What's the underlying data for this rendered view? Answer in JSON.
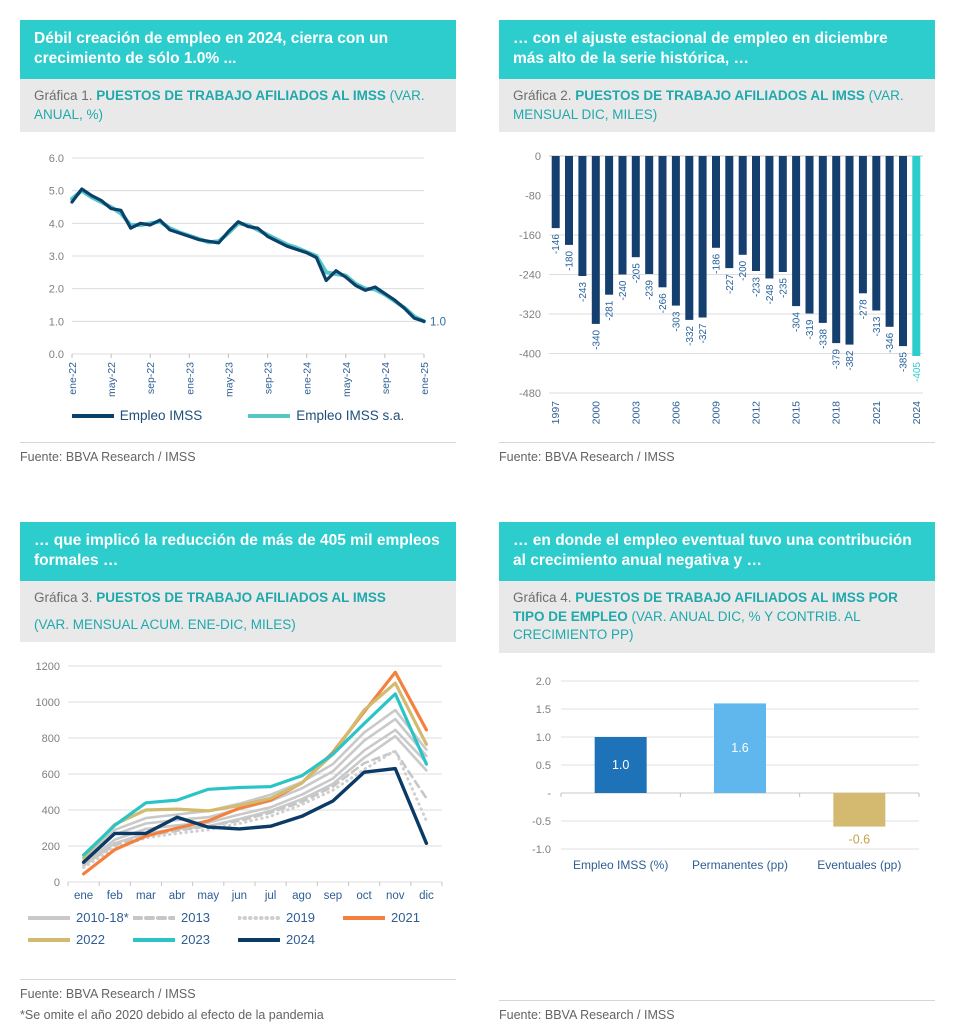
{
  "page": {
    "background": "#FFFFFF",
    "accent_teal": "#2DCCCD",
    "caption_bg": "#E9E9E9",
    "axis_text_gray": "#808080",
    "x_label_navy": "#2E5E94"
  },
  "cards": [
    {
      "banner": "Débil creación de empleo en 2024, cierra con un crecimiento de sólo 1.0% ...",
      "caption_prefix": "Gráfica 1.",
      "caption_strong": "PUESTOS DE TRABAJO AFILIADOS AL IMSS",
      "caption_note": "(VAR. ANUAL, %)",
      "fuente": "Fuente: BBVA Research / IMSS"
    },
    {
      "banner": "… con el ajuste estacional de empleo en diciembre más alto de la serie histórica, …",
      "caption_prefix": "Gráfica 2.",
      "caption_strong": "PUESTOS DE TRABAJO AFILIADOS AL IMSS",
      "caption_note": "(VAR. MENSUAL DIC, MILES)",
      "fuente": "Fuente: BBVA Research / IMSS"
    },
    {
      "banner": "… que implicó la reducción de más de 405 mil empleos formales …",
      "caption_prefix": "Gráfica 3.",
      "caption_strong": "PUESTOS DE TRABAJO AFILIADOS AL IMSS",
      "caption_note": "(VAR. MENSUAL ACUM. ENE-DIC, MILES)",
      "caption_note_block": true,
      "fuente": "Fuente: BBVA Research / IMSS",
      "footnote": "*Se omite el año 2020 debido al efecto de la pandemia"
    },
    {
      "banner": "… en donde el empleo eventual tuvo una contribución al crecimiento anual negativa y …",
      "caption_prefix": "Gráfica 4.",
      "caption_strong": "PUESTOS DE TRABAJO AFILIADOS AL IMSS POR TIPO DE EMPLEO",
      "caption_note": "(VAR. ANUAL DIC, % Y CONTRIB. AL CRECIMIENTO PP)",
      "fuente": "Fuente: BBVA Research / IMSS"
    }
  ],
  "chart_data": [
    {
      "type": "line",
      "variant": "yoy-line",
      "title": "Gráfica 1. PUESTOS DE TRABAJO AFILIADOS AL IMSS (VAR. ANUAL, %)",
      "ylim": [
        0,
        6
      ],
      "ytick_values": [
        0,
        1,
        2,
        3,
        4,
        5,
        6
      ],
      "ytick_labels": [
        "0.0",
        "1.0",
        "2.0",
        "3.0",
        "4.0",
        "5.0",
        "6.0"
      ],
      "x_tick_positions": [
        0,
        4,
        8,
        12,
        16,
        20,
        24,
        28,
        32,
        36
      ],
      "x_tick_labels": [
        "ene-22",
        "may-22",
        "sep-22",
        "ene-23",
        "may-23",
        "sep-23",
        "ene-24",
        "may-24",
        "sep-24",
        "ene-25"
      ],
      "end_label": "1.0",
      "end_label_color": "#2E6DA6",
      "legend_position": "bottom",
      "series": [
        {
          "name": "Empleo IMSS",
          "style": "solid",
          "color": "#0B4069",
          "width": 3.2,
          "values": [
            4.65,
            5.05,
            4.85,
            4.7,
            4.45,
            4.4,
            3.85,
            4.0,
            3.95,
            4.1,
            3.8,
            3.7,
            3.6,
            3.5,
            3.45,
            3.4,
            3.75,
            4.05,
            3.9,
            3.85,
            3.6,
            3.45,
            3.3,
            3.2,
            3.1,
            2.95,
            2.25,
            2.55,
            2.35,
            2.1,
            1.95,
            2.05,
            1.85,
            1.65,
            1.4,
            1.1,
            1.0
          ]
        },
        {
          "name": "Empleo IMSS s.a.",
          "style": "solid",
          "color": "#56C7C9",
          "width": 4,
          "values": [
            4.75,
            5.0,
            4.8,
            4.65,
            4.5,
            4.3,
            3.95,
            3.95,
            4.0,
            4.05,
            3.85,
            3.72,
            3.62,
            3.52,
            3.42,
            3.45,
            3.7,
            4.0,
            3.95,
            3.8,
            3.65,
            3.5,
            3.35,
            3.25,
            3.12,
            3.0,
            2.5,
            2.45,
            2.4,
            2.15,
            2.0,
            1.98,
            1.82,
            1.62,
            1.42,
            1.15,
            1.0
          ]
        }
      ]
    },
    {
      "type": "bar",
      "variant": "dic-bars",
      "title": "Gráfica 2. PUESTOS DE TRABAJO AFILIADOS AL IMSS (VAR. MENSUAL DIC, MILES)",
      "categories": [
        "1997",
        "1998",
        "1999",
        "2000",
        "2001",
        "2002",
        "2003",
        "2004",
        "2005",
        "2006",
        "2007",
        "2008",
        "2009",
        "2010",
        "2011",
        "2012",
        "2013",
        "2014",
        "2015",
        "2016",
        "2017",
        "2018",
        "2019",
        "2020",
        "2021",
        "2022",
        "2023",
        "2024"
      ],
      "values": [
        -146,
        -180,
        -243,
        -340,
        -281,
        -240,
        -205,
        -239,
        -266,
        -303,
        -332,
        -327,
        -186,
        -227,
        -200,
        -233,
        -248,
        -235,
        -304,
        -319,
        -338,
        -379,
        -382,
        -278,
        -313,
        -346,
        -385,
        -405
      ],
      "x_tick_labels": [
        "1997",
        "2000",
        "2003",
        "2006",
        "2009",
        "2012",
        "2015",
        "2018",
        "2021",
        "2024"
      ],
      "ylim": [
        -480,
        0
      ],
      "ytick_values": [
        0,
        -80,
        -160,
        -240,
        -320,
        -400,
        -480
      ],
      "bar_color": "#143F6F",
      "label_color": "#27619C",
      "highlight_index": 27,
      "highlight_color": "#2DCCCD",
      "highlight_label_color": "#2DCCCD"
    },
    {
      "type": "line",
      "variant": "cumulative-line",
      "title": "Gráfica 3. PUESTOS DE TRABAJO AFILIADOS AL IMSS (VAR. MENSUAL ACUM. ENE-DIC, MILES)",
      "categories": [
        "ene",
        "feb",
        "mar",
        "abr",
        "may",
        "jun",
        "jul",
        "ago",
        "sep",
        "oct",
        "nov",
        "dic"
      ],
      "ylim": [
        0,
        1200
      ],
      "ytick_values": [
        0,
        200,
        400,
        600,
        800,
        1000,
        1200
      ],
      "legend_position": "bottom",
      "series": [
        {
          "name": "2010-18*",
          "style": "solid",
          "color": "#C9C9C9",
          "width": 2.6,
          "band": [
            [
              100,
              235,
              295,
              315,
              330,
              375,
              415,
              485,
              575,
              730,
              845,
              665
            ],
            [
              120,
              265,
              325,
              345,
              360,
              405,
              450,
              520,
              615,
              785,
              905,
              700
            ],
            [
              135,
              290,
              355,
              375,
              395,
              435,
              485,
              555,
              655,
              830,
              955,
              735
            ],
            [
              90,
              215,
              270,
              295,
              310,
              350,
              395,
              460,
              545,
              690,
              810,
              620
            ]
          ]
        },
        {
          "name": "2013",
          "style": "dashed",
          "color": "#C6C6C6",
          "width": 2.6,
          "values": [
            95,
            205,
            255,
            285,
            310,
            340,
            385,
            445,
            530,
            660,
            725,
            465
          ]
        },
        {
          "name": "2019",
          "style": "dotted",
          "color": "#CFCFCF",
          "width": 3,
          "values": [
            80,
            190,
            245,
            270,
            290,
            325,
            365,
            430,
            510,
            625,
            730,
            340
          ]
        },
        {
          "name": "2021",
          "style": "solid",
          "color": "#F4803E",
          "width": 3.2,
          "values": [
            45,
            180,
            255,
            300,
            340,
            410,
            455,
            550,
            720,
            945,
            1165,
            845
          ]
        },
        {
          "name": "2022",
          "style": "solid",
          "color": "#D3BA70",
          "width": 3.2,
          "values": [
            135,
            320,
            400,
            405,
            395,
            425,
            465,
            550,
            710,
            955,
            1105,
            765
          ]
        },
        {
          "name": "2023",
          "style": "solid",
          "color": "#2BC4C6",
          "width": 3.2,
          "values": [
            150,
            315,
            440,
            455,
            515,
            525,
            530,
            590,
            710,
            880,
            1045,
            655
          ]
        },
        {
          "name": "2024",
          "style": "solid",
          "color": "#0A3A66",
          "width": 3.4,
          "values": [
            110,
            270,
            270,
            360,
            305,
            295,
            310,
            365,
            450,
            610,
            630,
            215
          ]
        }
      ]
    },
    {
      "type": "bar",
      "variant": "contrib-bars",
      "title": "Gráfica 4. PUESTOS DE TRABAJO AFILIADOS AL IMSS POR TIPO DE EMPLEO (VAR. ANUAL DIC, % Y CONTRIB. AL CRECIMIENTO PP)",
      "categories": [
        "Empleo IMSS (%)",
        "Permanentes (pp)",
        "Eventuales (pp)"
      ],
      "values": [
        1.0,
        1.6,
        -0.6
      ],
      "bar_labels": [
        "1.0",
        "1.6",
        "-0.6"
      ],
      "bar_colors": [
        "#1D72B8",
        "#5FB7EE",
        "#D3BA70"
      ],
      "negative_label_color": "#C7A24B",
      "ylim": [
        -1,
        2
      ],
      "ytick_values": [
        2,
        1.5,
        1,
        0.5,
        0,
        -0.5,
        -1
      ],
      "ytick_labels": [
        "2.0",
        "1.5",
        "1.0",
        "0.5",
        "-",
        "-0.5",
        "-1.0"
      ]
    }
  ]
}
